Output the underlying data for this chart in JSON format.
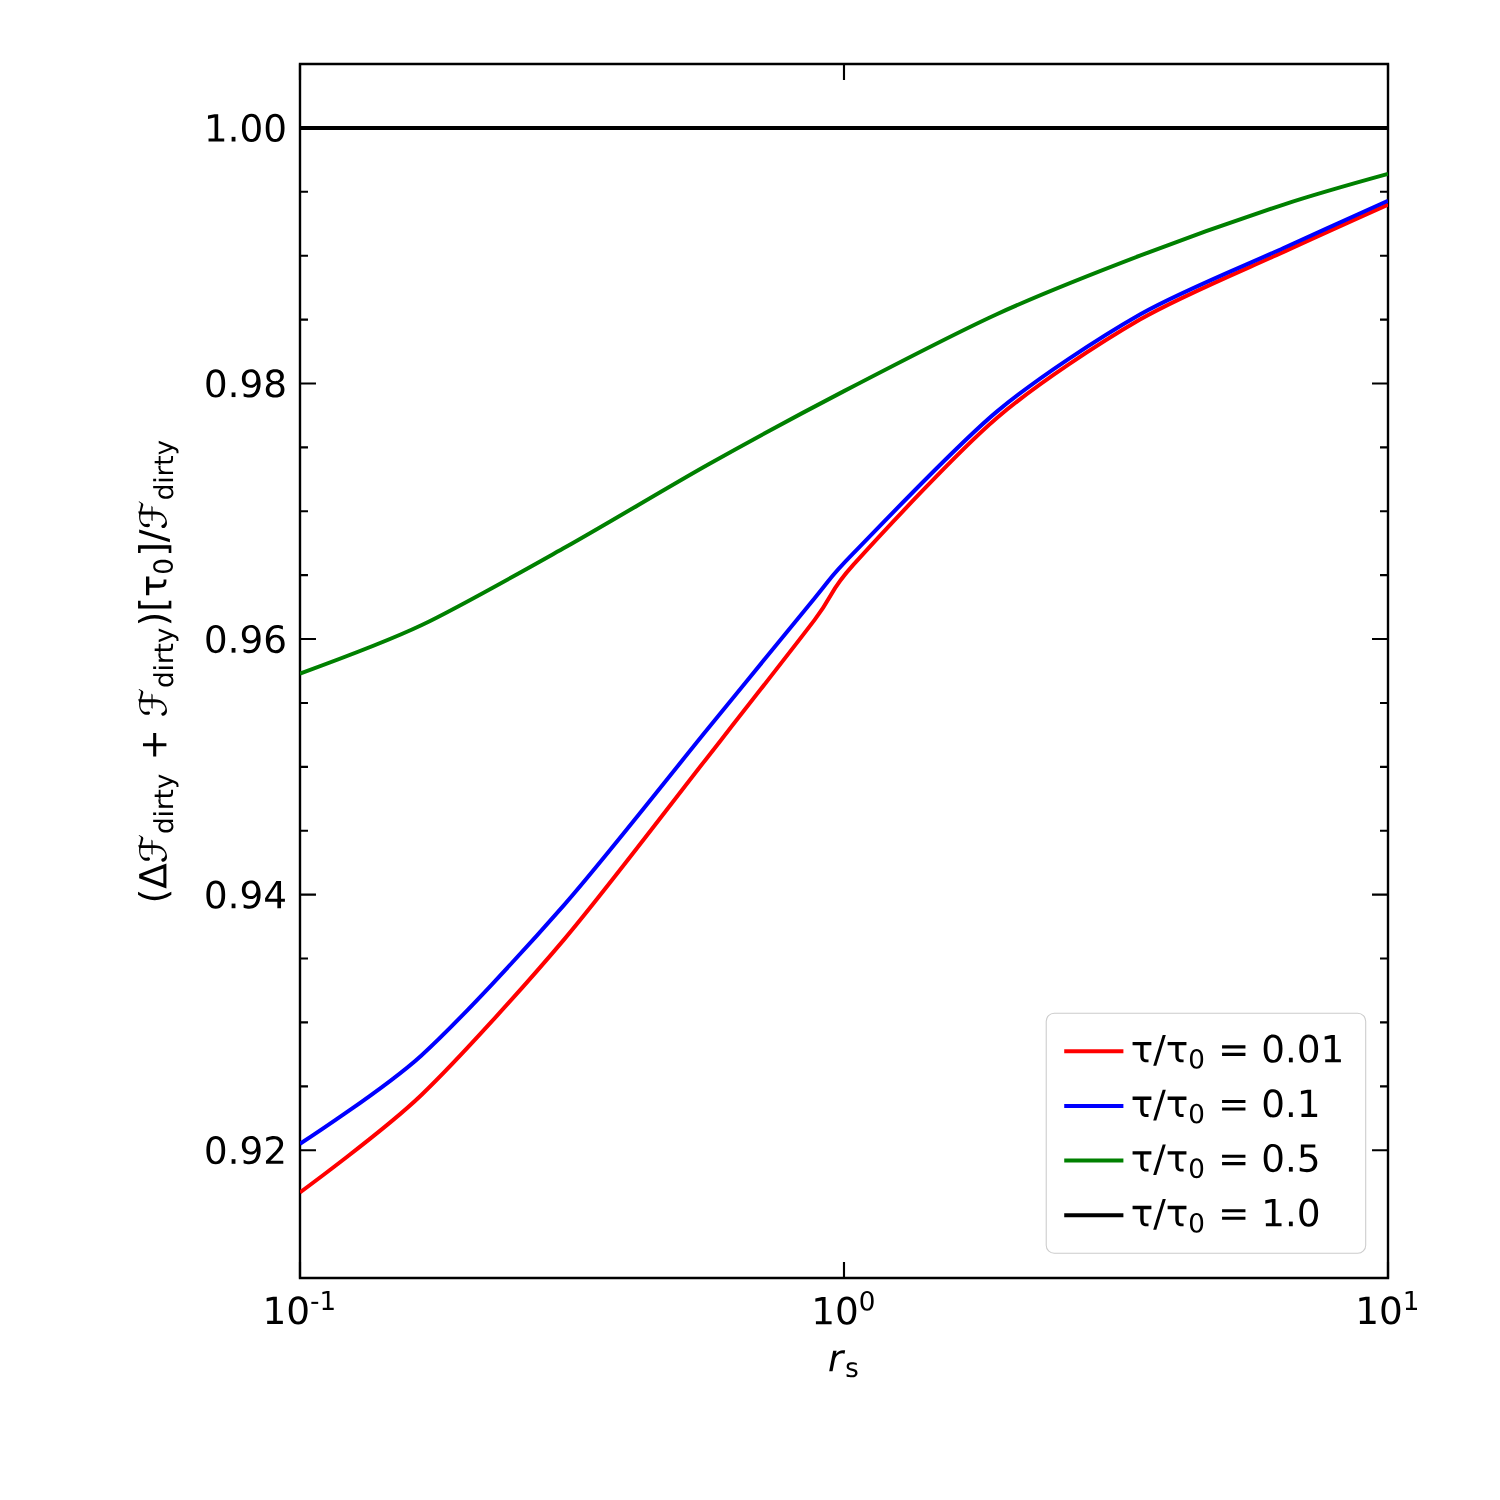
{
  "chart_data": {
    "type": "line",
    "xlabel": "*r*$_{s}$",
    "ylabel": "(Δℱ$_{dirty}$ + ℱ$_{dirty}$)[τ$_{0}$]/ℱ$_{dirty}$",
    "log": "x",
    "xlim": [
      0.1,
      10
    ],
    "ylim": [
      0.91,
      1.005
    ],
    "xticks": [
      {
        "value": 0.1,
        "label": "10$^{-1}$"
      },
      {
        "value": 1,
        "label": "10$^{0}$"
      },
      {
        "value": 10,
        "label": "10$^{1}$"
      }
    ],
    "yticks": [
      0.92,
      0.94,
      0.96,
      0.98,
      {
        "value": 1.0,
        "label": "1.00"
      }
    ],
    "legend": "bottom right",
    "grid": false,
    "marker": "none",
    "line_style": "solid",
    "series": [
      {
        "name": "τ/τ$_{0}$ = 0.01",
        "color": "#ff0000",
        "x": [
          0.1,
          0.167,
          0.306,
          0.56,
          0.883,
          1.04,
          1.91,
          3.5,
          6.43,
          10
        ],
        "values": [
          0.9167,
          0.9243,
          0.9365,
          0.9507,
          0.9615,
          0.9658,
          0.9773,
          0.985,
          0.9903,
          0.994
        ]
      },
      {
        "name": "τ/τ$_{0}$ = 0.1",
        "color": "#0000ff",
        "x": [
          0.1,
          0.167,
          0.306,
          0.56,
          0.883,
          1.04,
          1.91,
          3.5,
          6.43,
          10
        ],
        "values": [
          0.9205,
          0.9274,
          0.9392,
          0.9529,
          0.9632,
          0.9667,
          0.9778,
          0.9854,
          0.9906,
          0.9943
        ]
      },
      {
        "name": "τ/τ$_{0}$ = 0.5",
        "color": "#008000",
        "x": [
          0.1,
          0.1675,
          0.308,
          0.565,
          1.0,
          1.905,
          3.5,
          6.43,
          10
        ],
        "values": [
          0.9573,
          0.9611,
          0.9672,
          0.9737,
          0.9794,
          0.9854,
          0.99,
          0.994,
          0.9964
        ]
      },
      {
        "name": "τ/τ$_{0}$ = 1.0",
        "color": "#000000",
        "x": [
          0.1,
          10
        ],
        "values": [
          1.0,
          1.0
        ]
      }
    ]
  }
}
